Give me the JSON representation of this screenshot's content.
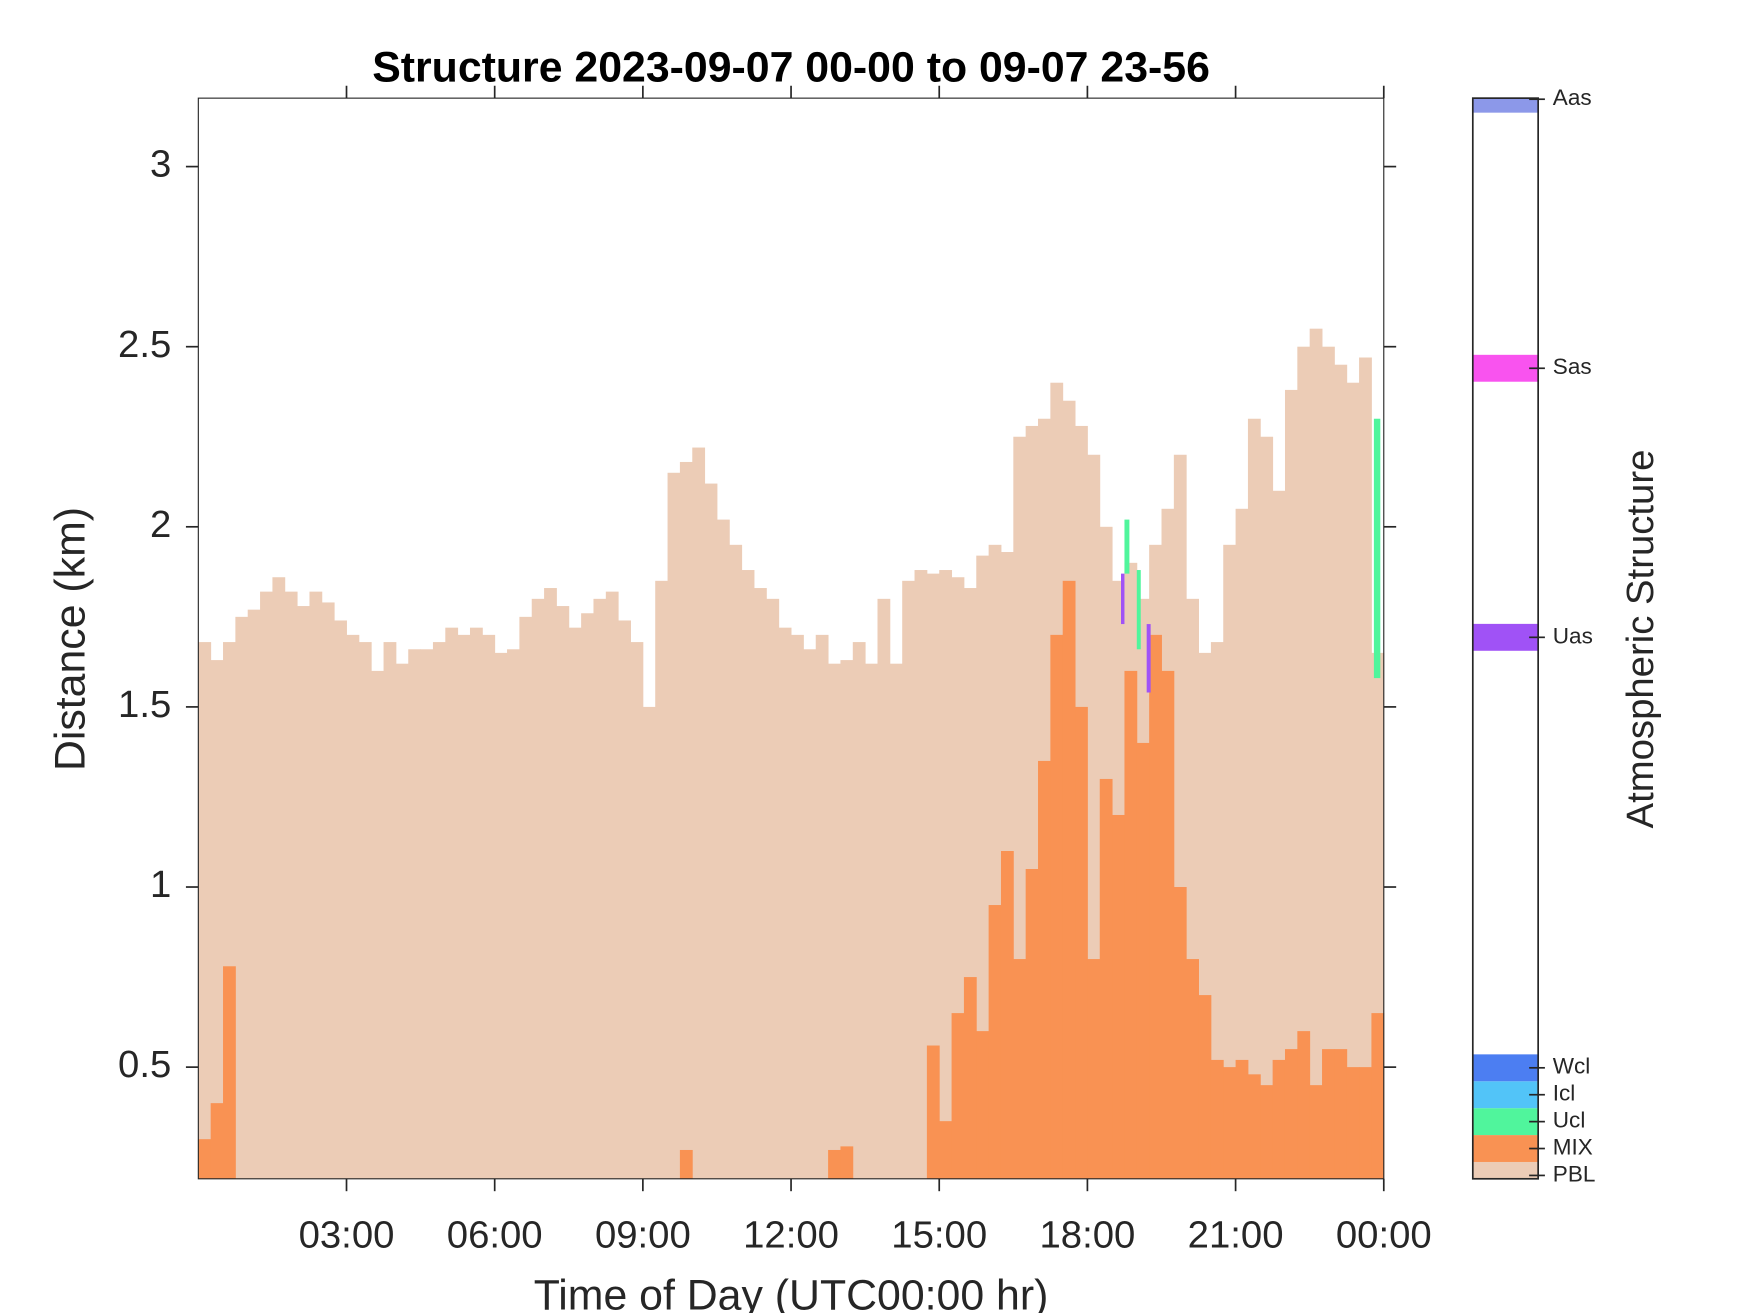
{
  "chart_data": {
    "type": "bar",
    "title": "Structure 2023-09-07 00-00 to 09-07 23-56",
    "xlabel": "Time of Day (UTC00:00 hr)",
    "ylabel": "Distance (km)",
    "xlim": [
      0,
      24
    ],
    "ylim": [
      0.19,
      3.19
    ],
    "xticks": [
      {
        "value": 3,
        "label": "03:00"
      },
      {
        "value": 6,
        "label": "06:00"
      },
      {
        "value": 9,
        "label": "09:00"
      },
      {
        "value": 12,
        "label": "12:00"
      },
      {
        "value": 15,
        "label": "15:00"
      },
      {
        "value": 18,
        "label": "18:00"
      },
      {
        "value": 21,
        "label": "21:00"
      },
      {
        "value": 24,
        "label": "00:00"
      }
    ],
    "yticks": [
      0.5,
      1,
      1.5,
      2,
      2.5,
      3
    ],
    "x": [
      0,
      0.25,
      0.5,
      0.75,
      1,
      1.25,
      1.5,
      1.75,
      2,
      2.25,
      2.5,
      2.75,
      3,
      3.25,
      3.5,
      3.75,
      4,
      4.25,
      4.5,
      4.75,
      5,
      5.25,
      5.5,
      5.75,
      6,
      6.25,
      6.5,
      6.75,
      7,
      7.25,
      7.5,
      7.75,
      8,
      8.25,
      8.5,
      8.75,
      9,
      9.25,
      9.5,
      9.75,
      10,
      10.25,
      10.5,
      10.75,
      11,
      11.25,
      11.5,
      11.75,
      12,
      12.25,
      12.5,
      12.75,
      13,
      13.25,
      13.5,
      13.75,
      14,
      14.25,
      14.5,
      14.75,
      15,
      15.25,
      15.5,
      15.75,
      16,
      16.25,
      16.5,
      16.75,
      17,
      17.25,
      17.5,
      17.75,
      18,
      18.25,
      18.5,
      18.75,
      19,
      19.25,
      19.5,
      19.75,
      20,
      20.25,
      20.5,
      20.75,
      21,
      21.25,
      21.5,
      21.75,
      22,
      22.25,
      22.5,
      22.75,
      23,
      23.25,
      23.5,
      23.75
    ],
    "series": [
      {
        "name": "PBL",
        "color": "#ecccb6",
        "values": [
          1.68,
          1.63,
          1.68,
          1.75,
          1.77,
          1.82,
          1.86,
          1.82,
          1.78,
          1.82,
          1.79,
          1.74,
          1.7,
          1.68,
          1.6,
          1.68,
          1.62,
          1.66,
          1.66,
          1.68,
          1.72,
          1.7,
          1.72,
          1.7,
          1.65,
          1.66,
          1.75,
          1.8,
          1.83,
          1.78,
          1.72,
          1.76,
          1.8,
          1.82,
          1.74,
          1.68,
          1.5,
          1.85,
          2.15,
          2.18,
          2.22,
          2.12,
          2.02,
          1.95,
          1.88,
          1.83,
          1.8,
          1.72,
          1.7,
          1.66,
          1.7,
          1.62,
          1.63,
          1.68,
          1.62,
          1.8,
          1.62,
          1.85,
          1.88,
          1.87,
          1.88,
          1.86,
          1.83,
          1.92,
          1.95,
          1.93,
          2.25,
          2.28,
          2.3,
          2.4,
          2.35,
          2.28,
          2.2,
          2.0,
          1.85,
          1.9,
          1.8,
          1.95,
          2.05,
          2.2,
          1.8,
          1.65,
          1.68,
          1.95,
          2.05,
          2.3,
          2.25,
          2.1,
          2.38,
          2.5,
          2.55,
          2.5,
          2.45,
          2.4,
          2.47,
          1.65
        ]
      },
      {
        "name": "MIX",
        "color": "#f99253",
        "values": [
          0.3,
          0.4,
          0.78,
          null,
          null,
          null,
          null,
          null,
          null,
          null,
          null,
          null,
          null,
          null,
          null,
          null,
          null,
          null,
          null,
          null,
          null,
          null,
          null,
          null,
          null,
          null,
          null,
          null,
          null,
          null,
          null,
          null,
          null,
          null,
          null,
          null,
          null,
          null,
          null,
          0.27,
          null,
          null,
          null,
          null,
          null,
          null,
          null,
          null,
          null,
          null,
          null,
          0.27,
          0.28,
          null,
          null,
          null,
          null,
          null,
          null,
          0.56,
          0.35,
          0.65,
          0.75,
          0.6,
          0.95,
          1.1,
          0.8,
          1.05,
          1.35,
          1.7,
          1.85,
          1.5,
          0.8,
          1.3,
          1.2,
          1.6,
          1.4,
          1.7,
          1.6,
          1.0,
          0.8,
          0.7,
          0.52,
          0.5,
          0.52,
          0.48,
          0.45,
          0.52,
          0.55,
          0.6,
          0.45,
          0.55,
          0.55,
          0.5,
          0.5,
          0.65
        ]
      }
    ],
    "layers": [
      {
        "name": "Uas",
        "start": 18.68,
        "end": 18.75,
        "base": 1.73,
        "top": 1.87
      },
      {
        "name": "Ucl",
        "start": 18.75,
        "end": 18.85,
        "base": 1.87,
        "top": 2.02
      },
      {
        "name": "Ucl",
        "start": 19.0,
        "end": 19.08,
        "base": 1.66,
        "top": 1.88
      },
      {
        "name": "Uas",
        "start": 19.2,
        "end": 19.28,
        "base": 1.54,
        "top": 1.73
      },
      {
        "name": "Ucl",
        "start": 23.8,
        "end": 23.93,
        "base": 1.58,
        "top": 2.3
      }
    ],
    "colorbar": {
      "label": "Atmospheric Structure",
      "lim": [
        0.875,
        41.04
      ],
      "classes": [
        {
          "name": "PBL",
          "value": 1,
          "color": "#ecccb6"
        },
        {
          "name": "MIX",
          "value": 2,
          "color": "#f99253"
        },
        {
          "name": "Ucl",
          "value": 3,
          "color": "#50f59c"
        },
        {
          "name": "Icl",
          "value": 4,
          "color": "#52c4f8"
        },
        {
          "name": "Wcl",
          "value": 5,
          "color": "#4c7ef2"
        },
        {
          "name": "Uas",
          "value": 21,
          "color": "#a052f6"
        },
        {
          "name": "Sas",
          "value": 31,
          "color": "#f953ef"
        },
        {
          "name": "Aas",
          "value": 41,
          "color": "#8c98e9"
        }
      ]
    }
  }
}
